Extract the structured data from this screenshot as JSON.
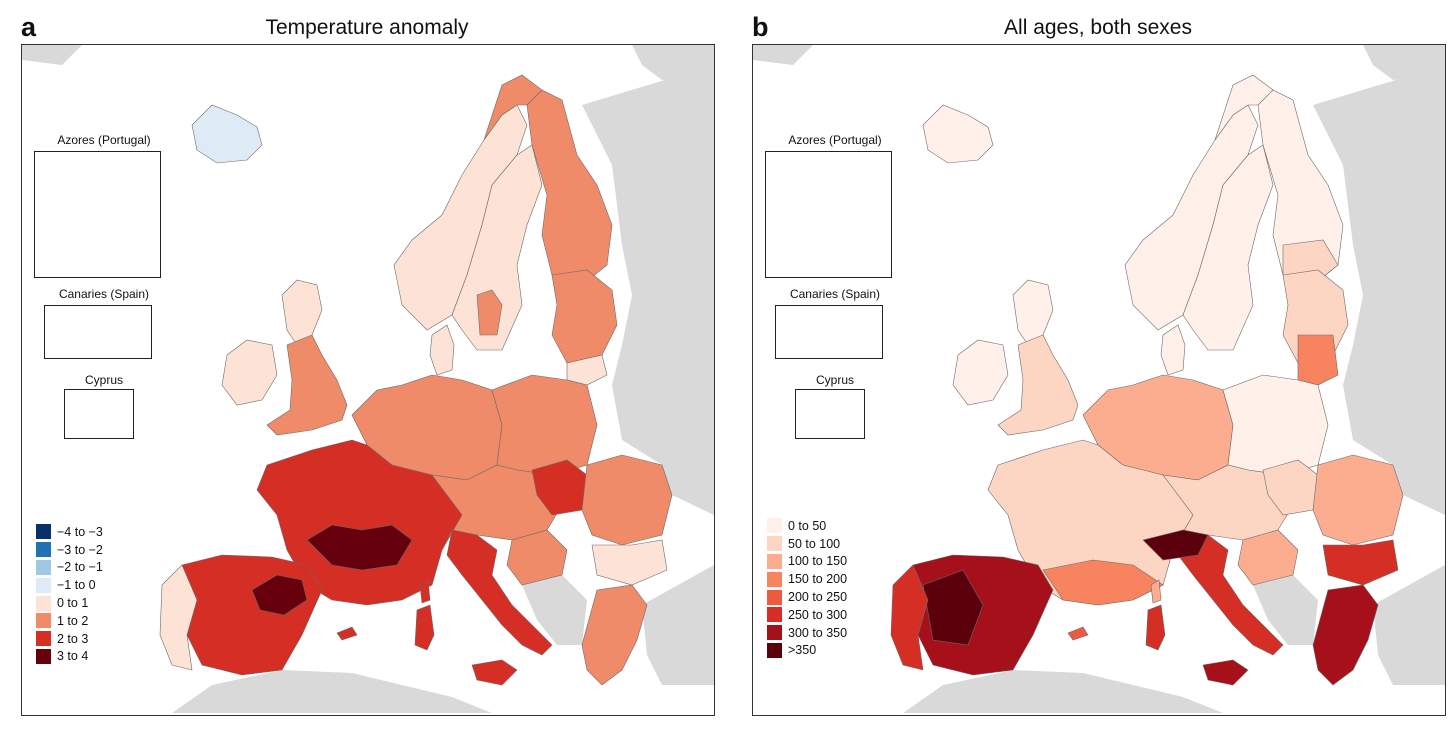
{
  "panels": [
    {
      "letter": "a",
      "title": "Temperature anomaly",
      "insets": {
        "azores": "Azores (Portugal)",
        "canaries": "Canaries (Spain)",
        "cyprus": "Cyprus"
      },
      "legend": [
        {
          "label": "−4 to −3",
          "color": "#08306b"
        },
        {
          "label": "−3 to −2",
          "color": "#2171b5"
        },
        {
          "label": "−2 to −1",
          "color": "#9ecae1"
        },
        {
          "label": "−1 to 0",
          "color": "#deebf7"
        },
        {
          "label": "0 to 1",
          "color": "#fde2d6"
        },
        {
          "label": "1 to 2",
          "color": "#f08b6a"
        },
        {
          "label": "2 to 3",
          "color": "#d42e25"
        },
        {
          "label": "3 to 4",
          "color": "#67000d"
        }
      ]
    },
    {
      "letter": "b",
      "title": "All ages, both sexes",
      "insets": {
        "azores": "Azores (Portugal)",
        "canaries": "Canaries (Spain)",
        "cyprus": "Cyprus"
      },
      "legend": [
        {
          "label": "0 to 50",
          "color": "#fff0ea"
        },
        {
          "label": "50 to 100",
          "color": "#fdd5c3"
        },
        {
          "label": "100 to 150",
          "color": "#fcad90"
        },
        {
          "label": "150 to 200",
          "color": "#f8845f"
        },
        {
          "label": "200 to 250",
          "color": "#ee5a3f"
        },
        {
          "label": "250 to 300",
          "color": "#d42e25"
        },
        {
          "label": "300 to 350",
          "color": "#a5101a"
        },
        {
          "label": ">350",
          "color": "#5c000c"
        }
      ]
    }
  ],
  "colors": {
    "non_eu_land": "#d9d9d9",
    "sea": "#ffffff",
    "border": "#6b6b6b"
  }
}
